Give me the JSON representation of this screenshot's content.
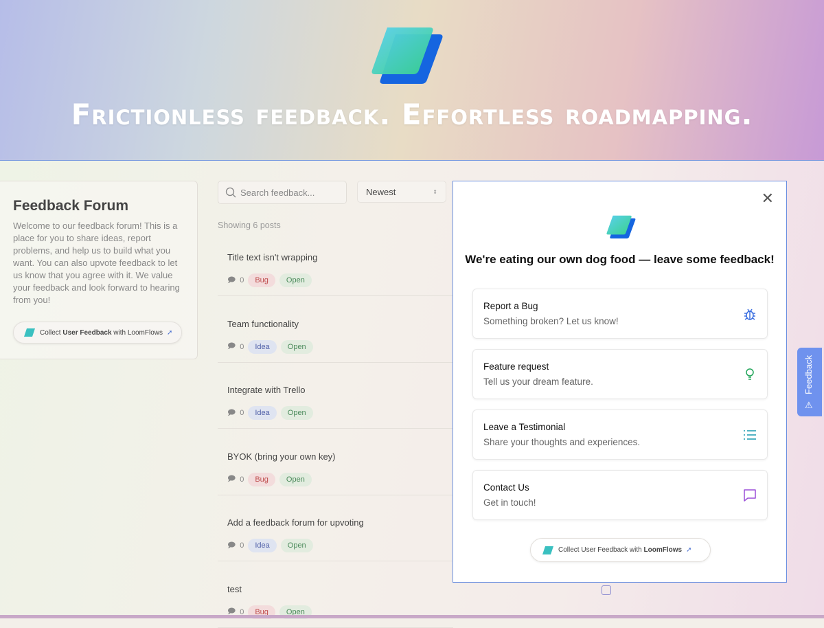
{
  "hero": {
    "title": "Frictionless feedback. Effortless roadmapping."
  },
  "forum": {
    "title": "Feedback Forum",
    "description": "Welcome to our feedback forum! This is a place for you to share ideas, report problems, and help us to build what you want. You can also upvote feedback to let us know that you agree with it. We value your feedback and look forward to hearing from you!",
    "badge": {
      "prefix": "Collect ",
      "bold": "User Feedback",
      "suffix": " with LoomFlows"
    }
  },
  "search": {
    "placeholder": "Search feedback..."
  },
  "sort": {
    "value": "Newest"
  },
  "showing": "Showing 6 posts",
  "posts": [
    {
      "title": "Title text isn't wrapping",
      "comments": "0",
      "type": "Bug",
      "status": "Open"
    },
    {
      "title": "Team functionality",
      "comments": "0",
      "type": "Idea",
      "status": "Open"
    },
    {
      "title": "Integrate with Trello",
      "comments": "0",
      "type": "Idea",
      "status": "Open"
    },
    {
      "title": "BYOK (bring your own key)",
      "comments": "0",
      "type": "Bug",
      "status": "Open"
    },
    {
      "title": "Add a feedback forum for upvoting",
      "comments": "0",
      "type": "Idea",
      "status": "Open"
    },
    {
      "title": "test",
      "comments": "0",
      "type": "Bug",
      "status": "Open"
    }
  ],
  "modal": {
    "heading": "We're eating our own dog food — leave some feedback!",
    "options": [
      {
        "title": "Report a Bug",
        "subtitle": "Something broken? Let us know!",
        "icon": "bug-icon",
        "color": "#3b6fe0"
      },
      {
        "title": "Feature request",
        "subtitle": "Tell us your dream feature.",
        "icon": "lightbulb-icon",
        "color": "#22a55a"
      },
      {
        "title": "Leave a Testimonial",
        "subtitle": "Share your thoughts and experiences.",
        "icon": "list-icon",
        "color": "#1a9ab0"
      },
      {
        "title": "Contact Us",
        "subtitle": "Get in touch!",
        "icon": "message-icon",
        "color": "#9b4fd8"
      }
    ],
    "badge": {
      "prefix": "Collect User Feedback with ",
      "bold": "LoomFlows"
    }
  },
  "feedback_tab": {
    "label": "Feedback"
  }
}
